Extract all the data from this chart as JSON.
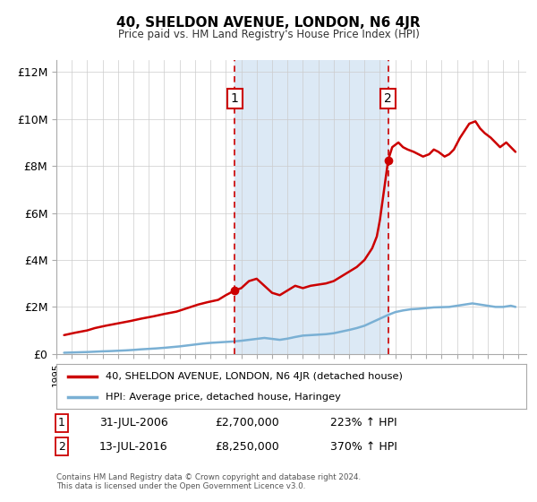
{
  "title": "40, SHELDON AVENUE, LONDON, N6 4JR",
  "subtitle": "Price paid vs. HM Land Registry's House Price Index (HPI)",
  "background_color": "#ffffff",
  "plot_bg_color": "#ffffff",
  "shaded_region_color": "#dce9f5",
  "ylabel_ticks": [
    "£0",
    "£2M",
    "£4M",
    "£6M",
    "£8M",
    "£10M",
    "£12M"
  ],
  "ytick_values": [
    0,
    2000000,
    4000000,
    6000000,
    8000000,
    10000000,
    12000000
  ],
  "ylim": [
    0,
    12500000
  ],
  "xlim_start": 1995,
  "xlim_end": 2025.5,
  "marker1_x": 2006.578,
  "marker1_y": 2700000,
  "marker2_x": 2016.536,
  "marker2_y": 8250000,
  "marker1_label": "1",
  "marker2_label": "2",
  "marker_color": "#cc0000",
  "vline_color": "#cc0000",
  "hpi_line_color": "#7ab0d4",
  "price_line_color": "#cc0000",
  "legend_label_price": "40, SHELDON AVENUE, LONDON, N6 4JR (detached house)",
  "legend_label_hpi": "HPI: Average price, detached house, Haringey",
  "note1_label": "1",
  "note1_date": "31-JUL-2006",
  "note1_price": "£2,700,000",
  "note1_hpi": "223% ↑ HPI",
  "note2_label": "2",
  "note2_date": "13-JUL-2016",
  "note2_price": "£8,250,000",
  "note2_hpi": "370% ↑ HPI",
  "footer": "Contains HM Land Registry data © Crown copyright and database right 2024.\nThis data is licensed under the Open Government Licence v3.0.",
  "price_data_x": [
    1995.5,
    1996.2,
    1997.0,
    1997.5,
    1998.2,
    1999.0,
    1999.8,
    2000.5,
    2001.3,
    2002.0,
    2002.8,
    2003.5,
    2004.2,
    2004.8,
    2005.5,
    2006.0,
    2006.578,
    2007.0,
    2007.5,
    2008.0,
    2008.5,
    2009.0,
    2009.5,
    2010.0,
    2010.5,
    2011.0,
    2011.5,
    2012.0,
    2012.5,
    2013.0,
    2013.5,
    2014.0,
    2014.5,
    2015.0,
    2015.5,
    2015.8,
    2016.0,
    2016.536,
    2016.8,
    2017.2,
    2017.5,
    2017.8,
    2018.2,
    2018.5,
    2018.8,
    2019.2,
    2019.5,
    2019.8,
    2020.2,
    2020.5,
    2020.8,
    2021.2,
    2021.5,
    2021.8,
    2022.2,
    2022.5,
    2022.8,
    2023.2,
    2023.5,
    2023.8,
    2024.2,
    2024.5,
    2024.8
  ],
  "price_data_y": [
    800000,
    900000,
    1000000,
    1100000,
    1200000,
    1300000,
    1400000,
    1500000,
    1600000,
    1700000,
    1800000,
    1950000,
    2100000,
    2200000,
    2300000,
    2500000,
    2700000,
    2800000,
    3100000,
    3200000,
    2900000,
    2600000,
    2500000,
    2700000,
    2900000,
    2800000,
    2900000,
    2950000,
    3000000,
    3100000,
    3300000,
    3500000,
    3700000,
    4000000,
    4500000,
    5000000,
    5700000,
    8250000,
    8800000,
    9000000,
    8800000,
    8700000,
    8600000,
    8500000,
    8400000,
    8500000,
    8700000,
    8600000,
    8400000,
    8500000,
    8700000,
    9200000,
    9500000,
    9800000,
    9900000,
    9600000,
    9400000,
    9200000,
    9000000,
    8800000,
    9000000,
    8800000,
    8600000
  ],
  "hpi_data_x": [
    1995.5,
    1996.0,
    1996.5,
    1997.0,
    1997.5,
    1998.0,
    1998.5,
    1999.0,
    1999.5,
    2000.0,
    2000.5,
    2001.0,
    2001.5,
    2002.0,
    2002.5,
    2003.0,
    2003.5,
    2004.0,
    2004.5,
    2005.0,
    2005.5,
    2006.0,
    2006.5,
    2007.0,
    2007.5,
    2008.0,
    2008.5,
    2009.0,
    2009.5,
    2010.0,
    2010.5,
    2011.0,
    2011.5,
    2012.0,
    2012.5,
    2013.0,
    2013.5,
    2014.0,
    2014.5,
    2015.0,
    2015.5,
    2016.0,
    2016.5,
    2017.0,
    2017.5,
    2018.0,
    2018.5,
    2019.0,
    2019.5,
    2020.0,
    2020.5,
    2021.0,
    2021.5,
    2022.0,
    2022.5,
    2023.0,
    2023.5,
    2024.0,
    2024.5,
    2024.8
  ],
  "hpi_data_y": [
    50000,
    60000,
    70000,
    80000,
    95000,
    110000,
    120000,
    135000,
    150000,
    170000,
    195000,
    215000,
    235000,
    260000,
    290000,
    320000,
    360000,
    400000,
    440000,
    470000,
    490000,
    510000,
    530000,
    560000,
    600000,
    640000,
    680000,
    640000,
    600000,
    650000,
    720000,
    780000,
    800000,
    820000,
    840000,
    880000,
    950000,
    1020000,
    1100000,
    1200000,
    1350000,
    1500000,
    1650000,
    1780000,
    1850000,
    1900000,
    1920000,
    1950000,
    1980000,
    1990000,
    2000000,
    2050000,
    2100000,
    2150000,
    2100000,
    2050000,
    2000000,
    2000000,
    2050000,
    2000000
  ]
}
